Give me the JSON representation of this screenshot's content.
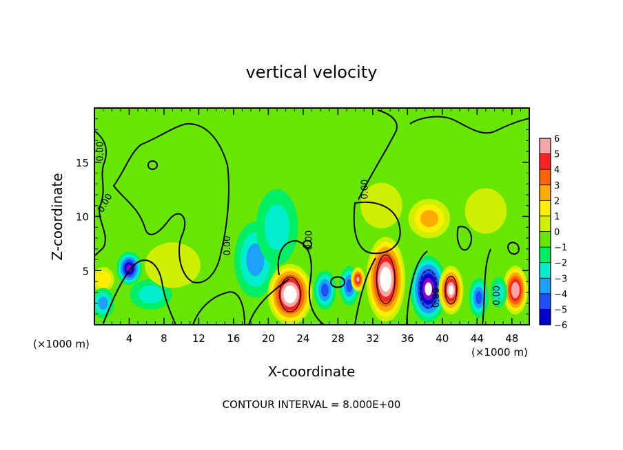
{
  "chart_data": {
    "type": "heatmap",
    "title": "vertical velocity",
    "xlabel": "X-coordinate",
    "ylabel": "Z-coordinate",
    "x_unit_left": "(×1000 m)",
    "x_unit_right": "(×1000 m)",
    "xlim": [
      0,
      50
    ],
    "ylim": [
      0,
      20
    ],
    "x_ticks": [
      "4",
      "8",
      "12",
      "16",
      "20",
      "24",
      "28",
      "32",
      "36",
      "40",
      "44",
      "48"
    ],
    "x_tick_values": [
      4,
      8,
      12,
      16,
      20,
      24,
      28,
      32,
      36,
      40,
      44,
      48
    ],
    "y_ticks": [
      "5",
      "10",
      "15"
    ],
    "y_tick_values": [
      5,
      10,
      15
    ],
    "colorbar_labels": [
      "6",
      "5",
      "4",
      "3",
      "2",
      "1",
      "0",
      "−1",
      "−2",
      "−3",
      "−4",
      "−5",
      "−6"
    ],
    "colorbar_colors": [
      "#f7a5a5",
      "#ff2222",
      "#ff6600",
      "#ffaa00",
      "#ffee00",
      "#ccf000",
      "#66e600",
      "#00ee66",
      "#00eecc",
      "#1ea0ff",
      "#1e50ff",
      "#0000cc",
      "#8800cc"
    ],
    "contour_label": "0.00",
    "contour_interval_text": "CONTOUR INTERVAL = 8.000E+00",
    "features": [
      {
        "x": 4.0,
        "z": 5.2,
        "value": -6.0,
        "sx": 0.9,
        "sz": 1.1
      },
      {
        "x": 1.0,
        "z": 4.2,
        "value": 2.5,
        "sx": 0.8,
        "sz": 0.8
      },
      {
        "x": 1.0,
        "z": 2.0,
        "value": -3.0,
        "sx": 0.8,
        "sz": 1.0
      },
      {
        "x": 6.5,
        "z": 2.8,
        "value": -2.0,
        "sx": 1.5,
        "sz": 1.0
      },
      {
        "x": 9.0,
        "z": 5.5,
        "value": 1.0,
        "sx": 2.0,
        "sz": 1.5
      },
      {
        "x": 18.5,
        "z": 6.0,
        "value": -3.0,
        "sx": 1.5,
        "sz": 2.5
      },
      {
        "x": 21.0,
        "z": 9.0,
        "value": -2.0,
        "sx": 1.5,
        "sz": 2.5
      },
      {
        "x": 22.5,
        "z": 2.8,
        "value": 7.5,
        "sx": 1.6,
        "sz": 2.0
      },
      {
        "x": 26.5,
        "z": 3.2,
        "value": -4.0,
        "sx": 0.8,
        "sz": 1.3
      },
      {
        "x": 29.3,
        "z": 3.6,
        "value": -4.0,
        "sx": 0.7,
        "sz": 1.3
      },
      {
        "x": 30.3,
        "z": 4.2,
        "value": 6.0,
        "sx": 0.5,
        "sz": 0.8
      },
      {
        "x": 33.5,
        "z": 4.2,
        "value": 7.5,
        "sx": 1.4,
        "sz": 2.8
      },
      {
        "x": 38.4,
        "z": 3.3,
        "value": -7.0,
        "sx": 1.3,
        "sz": 2.2
      },
      {
        "x": 41.0,
        "z": 3.2,
        "value": 7.0,
        "sx": 0.9,
        "sz": 1.6
      },
      {
        "x": 44.2,
        "z": 2.5,
        "value": -4.0,
        "sx": 0.7,
        "sz": 1.3
      },
      {
        "x": 48.4,
        "z": 3.2,
        "value": 6.5,
        "sx": 0.9,
        "sz": 1.6
      },
      {
        "x": 46.5,
        "z": 3.0,
        "value": -2.0,
        "sx": 0.6,
        "sz": 1.0
      },
      {
        "x": 38.5,
        "z": 9.8,
        "value": 3.0,
        "sx": 1.5,
        "sz": 1.3
      },
      {
        "x": 33.0,
        "z": 11.0,
        "value": 1.5,
        "sx": 1.5,
        "sz": 1.5
      },
      {
        "x": 45.0,
        "z": 10.5,
        "value": 1.0,
        "sx": 1.5,
        "sz": 1.5
      }
    ]
  }
}
